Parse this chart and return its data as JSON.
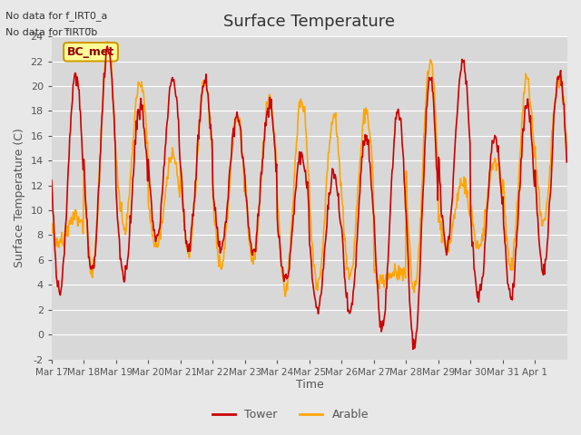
{
  "title": "Surface Temperature",
  "ylabel": "Surface Temperature (C)",
  "xlabel": "Time",
  "ylim": [
    -2,
    24
  ],
  "yticks": [
    -2,
    0,
    2,
    4,
    6,
    8,
    10,
    12,
    14,
    16,
    18,
    20,
    22,
    24
  ],
  "xticklabels": [
    "Mar 17",
    "Mar 18",
    "Mar 19",
    "Mar 20",
    "Mar 21",
    "Mar 22",
    "Mar 23",
    "Mar 24",
    "Mar 25",
    "Mar 26",
    "Mar 27",
    "Mar 28",
    "Mar 29",
    "Mar 30",
    "Mar 31",
    "Apr 1"
  ],
  "tower_color": "#cc0000",
  "arable_color": "#ffa500",
  "background_color": "#e8e8e8",
  "plot_bg_color": "#d8d8d8",
  "legend_bg": "#ffff99",
  "legend_border": "#cc9900",
  "text_color": "#555555",
  "legend_label_tower": "Tower",
  "legend_label_arable": "Arable",
  "site_label": "BC_met",
  "nodata_line1": "No data for f_IRT0_a",
  "nodata_line2": "No data for f̅IRT0̅b",
  "linewidth": 1.2,
  "n_points_per_day": 48,
  "n_days": 16,
  "tower_daily_max": [
    21,
    23,
    18.5,
    20.5,
    20.5,
    17.5,
    18.5,
    14.5,
    13,
    16,
    18,
    20.5,
    22,
    16,
    18.5,
    21
  ],
  "tower_daily_min": [
    3.5,
    5,
    4.5,
    7.5,
    7,
    7,
    6.5,
    4.5,
    2,
    1.5,
    0.5,
    -1,
    7,
    3,
    3,
    5
  ],
  "arable_daily_max": [
    9.5,
    23,
    20.5,
    14.5,
    20.5,
    17.5,
    19,
    19,
    17.5,
    18,
    5,
    22,
    12,
    14,
    20.5,
    20.5
  ],
  "arable_daily_min": [
    7.5,
    5,
    8.5,
    7,
    6.5,
    5.5,
    6,
    3.5,
    4,
    4.5,
    4.5,
    3.5,
    7,
    7,
    5.5,
    9
  ]
}
